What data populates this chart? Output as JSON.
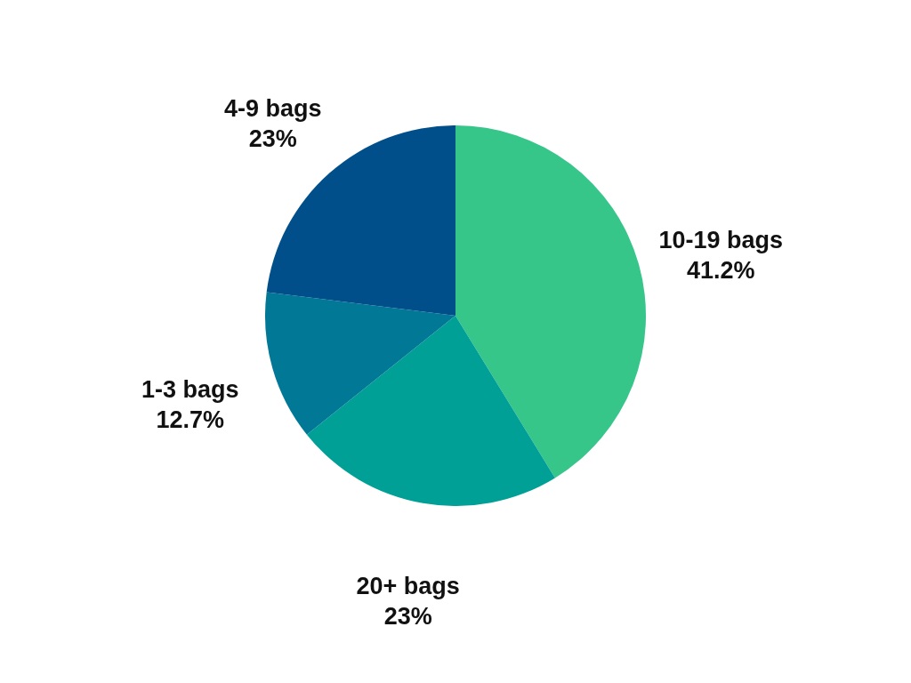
{
  "chart_data": {
    "type": "pie",
    "categories": [
      "10-19 bags",
      "20+ bags",
      "1-3 bags",
      "4-9 bags"
    ],
    "values": [
      41.2,
      23,
      12.7,
      23
    ],
    "colors": [
      "#36c68a",
      "#00a096",
      "#007896",
      "#004f8a"
    ],
    "value_labels": [
      "41.2%",
      "23%",
      "12.7%",
      "23%"
    ]
  }
}
